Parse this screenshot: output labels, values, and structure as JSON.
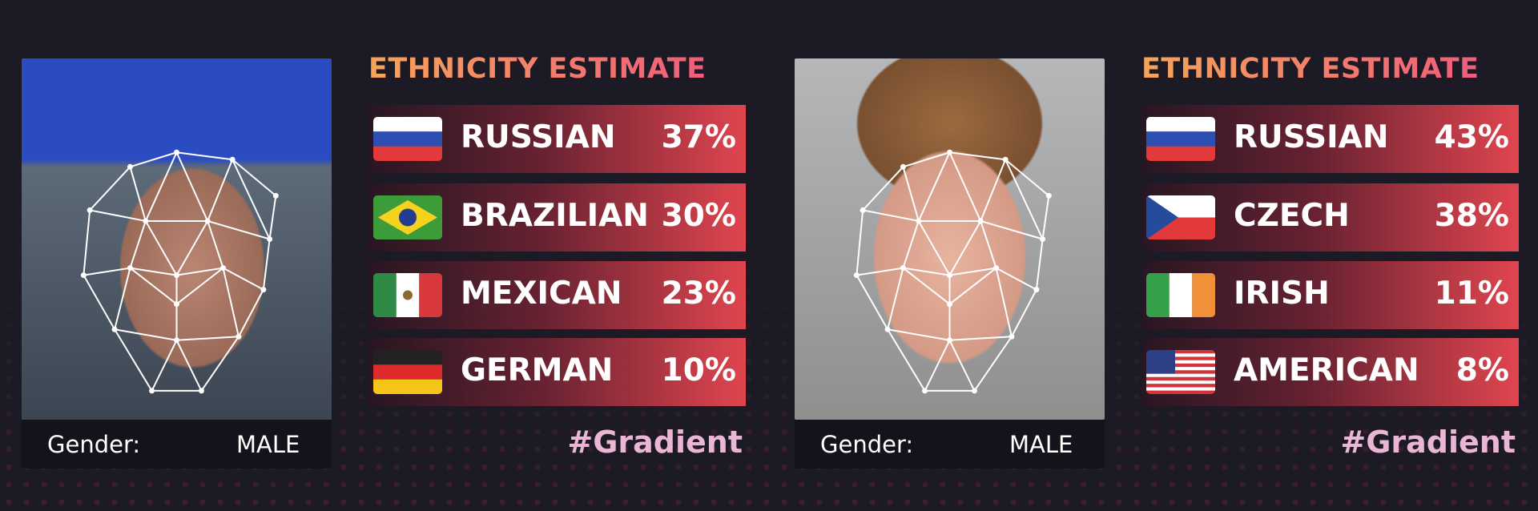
{
  "panels": [
    {
      "title": "ETHNICITY ESTIMATE",
      "rows": [
        {
          "name": "RUSSIAN",
          "percent": "37%"
        },
        {
          "name": "BRAZILIAN",
          "percent": "30%"
        },
        {
          "name": "MEXICAN",
          "percent": "23%"
        },
        {
          "name": "GERMAN",
          "percent": "10%"
        }
      ],
      "gender_label": "Gender:",
      "gender": "MALE",
      "hashtag": "#Gradient"
    },
    {
      "title": "ETHNICITY ESTIMATE",
      "rows": [
        {
          "name": "RUSSIAN",
          "percent": "43%"
        },
        {
          "name": "CZECH",
          "percent": "38%"
        },
        {
          "name": "IRISH",
          "percent": "11%"
        },
        {
          "name": "AMERICAN",
          "percent": "8%"
        }
      ],
      "gender_label": "Gender:",
      "gender": "MALE",
      "hashtag": "#Gradient"
    }
  ]
}
